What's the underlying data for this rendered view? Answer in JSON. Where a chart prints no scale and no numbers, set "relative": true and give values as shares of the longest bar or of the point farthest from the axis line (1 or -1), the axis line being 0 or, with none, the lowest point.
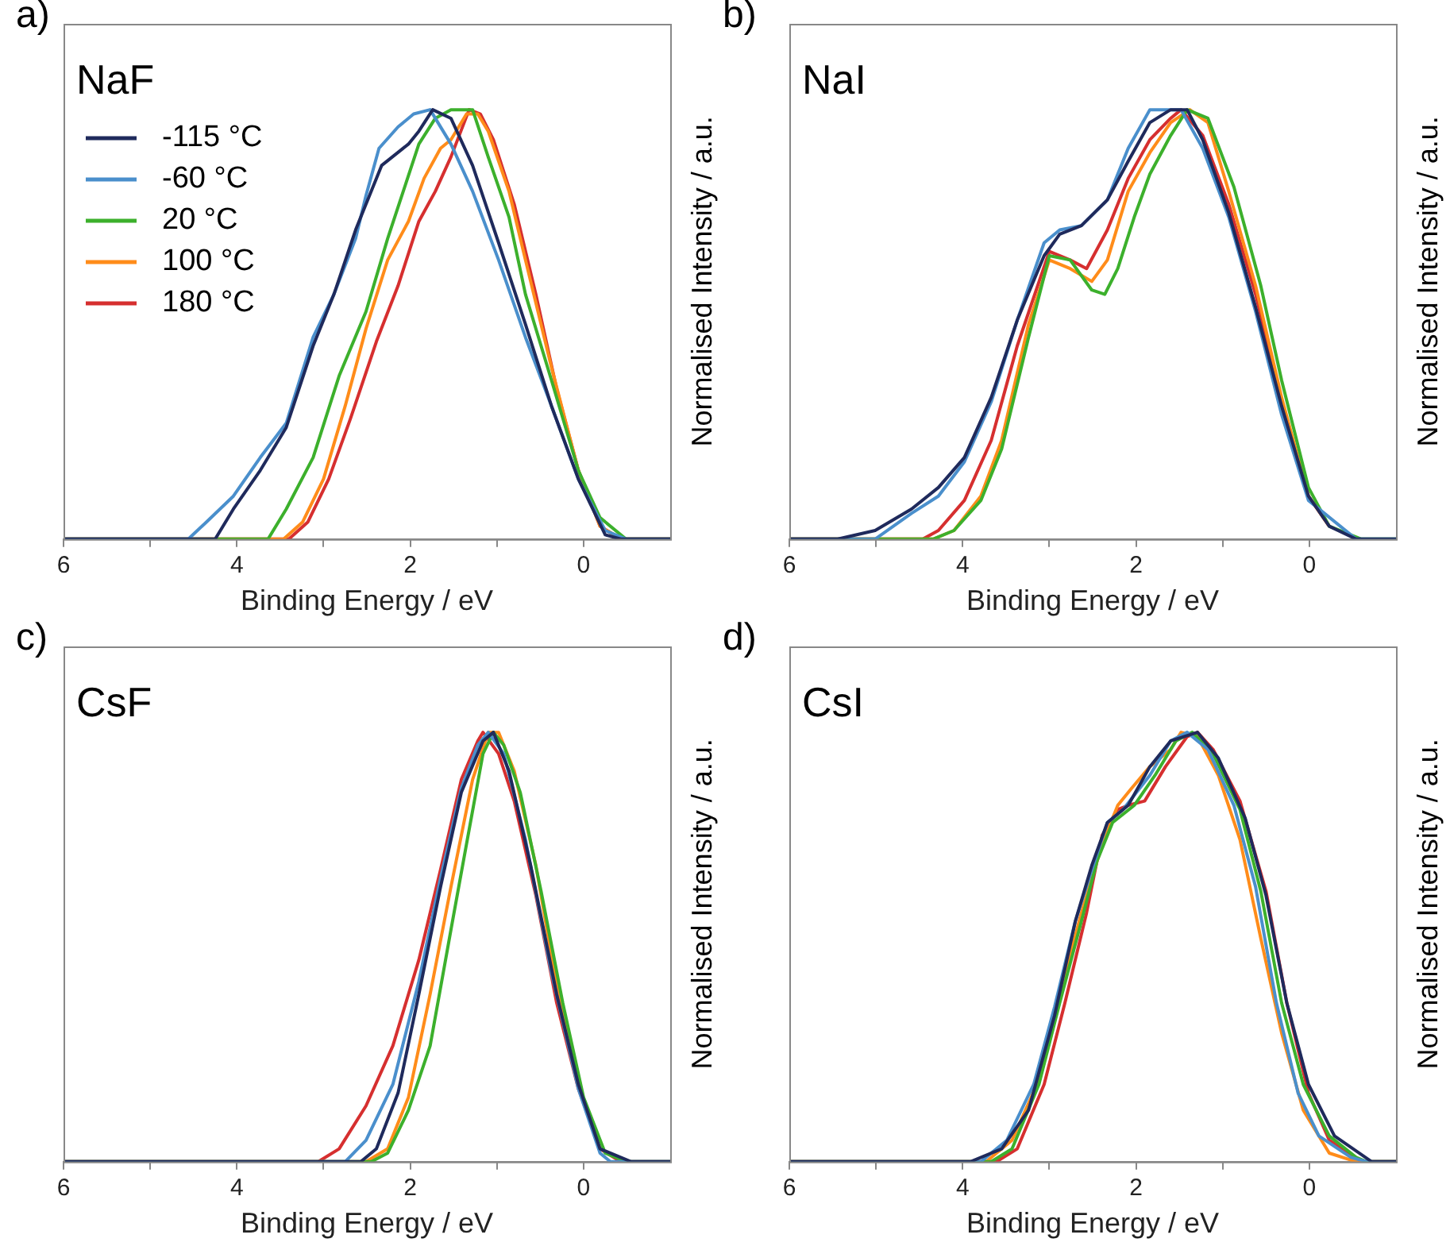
{
  "chart_data": [
    {
      "type": "line",
      "title": "NaF",
      "annotations": [
        "a)"
      ],
      "xlabel": "Binding Energy / eV",
      "ylabel": "Normalised Intensity / a.u.",
      "relative": true,
      "xlim": [
        6,
        -1
      ],
      "xticks": [
        6,
        {
          "value": 5,
          "label": null
        },
        4,
        {
          "value": 3,
          "label": null
        },
        2,
        {
          "value": 1,
          "label": null
        },
        0
      ],
      "legend": "top left",
      "marker": "none",
      "series": [
        {
          "name": "-115 °C",
          "color": "#1f2a5c",
          "x": [
            6,
            4.25,
            4.04,
            3.73,
            3.43,
            3.12,
            2.88,
            2.63,
            2.51,
            2.33,
            2.02,
            1.9,
            1.74,
            1.53,
            1.28,
            0.98,
            0.67,
            0.37,
            0.06,
            -0.25,
            -0.43,
            -1
          ],
          "values": [
            0,
            0,
            0.07,
            0.16,
            0.26,
            0.45,
            0.57,
            0.72,
            0.78,
            0.87,
            0.92,
            0.95,
            1,
            0.98,
            0.87,
            0.69,
            0.5,
            0.31,
            0.14,
            0.01,
            0,
            0
          ]
        },
        {
          "name": "-60 °C",
          "color": "#4a8fcc",
          "x": [
            6,
            4.56,
            4.35,
            4.04,
            3.73,
            3.43,
            3.12,
            2.88,
            2.63,
            2.51,
            2.36,
            2.14,
            1.96,
            1.77,
            1.53,
            1.28,
            0.98,
            0.67,
            0.37,
            0.06,
            -0.25,
            -0.49,
            -1
          ],
          "values": [
            0,
            0,
            0.04,
            0.1,
            0.19,
            0.27,
            0.47,
            0.57,
            0.7,
            0.8,
            0.91,
            0.96,
            0.99,
            1,
            0.92,
            0.81,
            0.65,
            0.47,
            0.31,
            0.14,
            0.02,
            0,
            0
          ]
        },
        {
          "name": "20 °C",
          "color": "#3cb02c",
          "x": [
            6,
            3.64,
            3.43,
            3.12,
            2.82,
            2.51,
            2.26,
            2.08,
            1.9,
            1.71,
            1.53,
            1.28,
            1.1,
            0.86,
            0.67,
            0.37,
            0.06,
            -0.19,
            -0.49,
            -1
          ],
          "values": [
            0,
            0,
            0.07,
            0.19,
            0.38,
            0.53,
            0.7,
            0.81,
            0.92,
            0.98,
            1,
            1,
            0.89,
            0.75,
            0.57,
            0.37,
            0.16,
            0.05,
            0,
            0
          ]
        },
        {
          "name": "100 °C",
          "color": "#ff8c1a",
          "x": [
            6,
            3.46,
            3.24,
            3,
            2.75,
            2.51,
            2.26,
            2.02,
            1.84,
            1.65,
            1.53,
            1.35,
            1.22,
            1.1,
            0.86,
            0.67,
            0.37,
            0.06,
            -0.19,
            -0.43,
            -1
          ],
          "values": [
            0,
            0,
            0.04,
            0.14,
            0.31,
            0.49,
            0.65,
            0.74,
            0.84,
            0.91,
            0.93,
            0.99,
            0.99,
            0.95,
            0.81,
            0.65,
            0.4,
            0.16,
            0.03,
            0,
            0
          ]
        },
        {
          "name": "180 °C",
          "color": "#d62f2f",
          "x": [
            6,
            3.4,
            3.18,
            2.94,
            2.69,
            2.39,
            2.14,
            1.9,
            1.71,
            1.53,
            1.32,
            1.19,
            1.04,
            0.8,
            0.55,
            0.31,
            0.06,
            -0.19,
            -0.43,
            -1
          ],
          "values": [
            0,
            0,
            0.04,
            0.14,
            0.28,
            0.46,
            0.59,
            0.74,
            0.81,
            0.89,
            1,
            0.99,
            0.93,
            0.78,
            0.57,
            0.35,
            0.16,
            0.03,
            0,
            0
          ]
        }
      ]
    },
    {
      "type": "line",
      "title": "NaI",
      "annotations": [
        "b)"
      ],
      "xlabel": "Binding Energy / eV",
      "ylabel": "Normalised Intensity / a.u.",
      "relative": true,
      "xlim": [
        6,
        -1
      ],
      "xticks": [
        6,
        {
          "value": 5,
          "label": null
        },
        4,
        {
          "value": 3,
          "label": null
        },
        2,
        {
          "value": 1,
          "label": null
        },
        0
      ],
      "marker": "none",
      "series": [
        {
          "color": "#1f2a5c",
          "x": [
            6,
            5.44,
            5.01,
            4.59,
            4.28,
            3.98,
            3.67,
            3.37,
            3.06,
            2.88,
            2.63,
            2.33,
            2.09,
            1.84,
            1.6,
            1.41,
            1.23,
            0.93,
            0.62,
            0.32,
            0.01,
            -0.23,
            -0.54,
            -1
          ],
          "values": [
            0,
            0,
            0.02,
            0.07,
            0.12,
            0.19,
            0.33,
            0.51,
            0.66,
            0.71,
            0.73,
            0.79,
            0.88,
            0.97,
            1,
            1,
            0.93,
            0.76,
            0.54,
            0.31,
            0.1,
            0.03,
            0,
            0
          ]
        },
        {
          "color": "#4a8fcc",
          "x": [
            6,
            5.01,
            4.59,
            4.28,
            3.98,
            3.67,
            3.37,
            3.06,
            2.88,
            2.63,
            2.33,
            2.09,
            1.84,
            1.66,
            1.48,
            1.23,
            0.93,
            0.62,
            0.32,
            0.01,
            -0.54,
            -1
          ],
          "values": [
            0,
            0,
            0.06,
            0.1,
            0.18,
            0.32,
            0.51,
            0.69,
            0.72,
            0.73,
            0.79,
            0.91,
            1,
            1,
            1,
            0.91,
            0.75,
            0.53,
            0.29,
            0.09,
            0,
            0
          ]
        },
        {
          "color": "#3cb02c",
          "x": [
            6,
            4.34,
            4.1,
            3.79,
            3.55,
            3.24,
            3,
            2.76,
            2.51,
            2.36,
            2.21,
            2.02,
            1.84,
            1.6,
            1.41,
            1.17,
            0.87,
            0.56,
            0.32,
            0.01,
            -0.23,
            -0.6,
            -1
          ],
          "values": [
            0,
            0,
            0.02,
            0.09,
            0.21,
            0.47,
            0.66,
            0.65,
            0.58,
            0.57,
            0.63,
            0.75,
            0.85,
            0.94,
            1,
            0.98,
            0.82,
            0.59,
            0.37,
            0.12,
            0.03,
            0,
            0
          ]
        },
        {
          "color": "#ff8c1a",
          "x": [
            6,
            4.34,
            4.1,
            3.79,
            3.55,
            3.24,
            3,
            2.76,
            2.51,
            2.33,
            2.09,
            1.84,
            1.6,
            1.38,
            1.17,
            0.93,
            0.62,
            0.32,
            0.01,
            -0.23
          ],
          "values": [
            0,
            0,
            0.02,
            0.1,
            0.23,
            0.5,
            0.65,
            0.63,
            0.6,
            0.65,
            0.81,
            0.9,
            0.97,
            1,
            0.97,
            0.81,
            0.59,
            0.33,
            0.1,
            0.03
          ]
        },
        {
          "color": "#d62f2f",
          "x": [
            6,
            4.46,
            4.28,
            3.98,
            3.67,
            3.37,
            3,
            2.76,
            2.57,
            2.33,
            2.09,
            1.84,
            1.6,
            1.48,
            1.23,
            0.93,
            0.62,
            0.32,
            0.01,
            -0.23
          ],
          "values": [
            0,
            0,
            0.02,
            0.09,
            0.23,
            0.45,
            0.67,
            0.65,
            0.63,
            0.72,
            0.84,
            0.93,
            0.98,
            1,
            0.94,
            0.78,
            0.57,
            0.32,
            0.1,
            0.03
          ]
        }
      ]
    },
    {
      "type": "line",
      "title": "CsF",
      "annotations": [
        "c)"
      ],
      "xlabel": "Binding Energy / eV",
      "ylabel": "Normalised Intensity / a.u.",
      "relative": true,
      "xlim": [
        6,
        -1
      ],
      "xticks": [
        6,
        {
          "value": 5,
          "label": null
        },
        4,
        {
          "value": 3,
          "label": null
        },
        2,
        {
          "value": 1,
          "label": null
        },
        0
      ],
      "marker": "none",
      "series": [
        {
          "color": "#1f2a5c",
          "x": [
            6,
            2.57,
            2.39,
            2.14,
            1.9,
            1.65,
            1.41,
            1.16,
            1.04,
            0.86,
            0.61,
            0.31,
            0.06,
            -0.19,
            -0.55,
            -1
          ],
          "values": [
            0,
            0,
            0.03,
            0.16,
            0.39,
            0.64,
            0.86,
            0.98,
            1,
            0.91,
            0.69,
            0.39,
            0.18,
            0.03,
            0,
            0
          ]
        },
        {
          "color": "#4a8fcc",
          "x": [
            6,
            2.75,
            2.51,
            2.2,
            1.9,
            1.65,
            1.41,
            1.22,
            1.1,
            0.92,
            0.67,
            0.37,
            0.06,
            -0.19,
            -0.31,
            -1
          ],
          "values": [
            0,
            0,
            0.05,
            0.18,
            0.42,
            0.66,
            0.87,
            0.97,
            1,
            0.95,
            0.75,
            0.44,
            0.17,
            0.02,
            0,
            0
          ]
        },
        {
          "color": "#3cb02c",
          "x": [
            6,
            2.45,
            2.26,
            2.02,
            1.77,
            1.53,
            1.35,
            1.16,
            1.04,
            0.92,
            0.73,
            0.49,
            0.24,
            0,
            -0.25,
            -0.49,
            -1
          ],
          "values": [
            0,
            0,
            0.02,
            0.12,
            0.27,
            0.54,
            0.74,
            0.95,
            1,
            0.97,
            0.86,
            0.63,
            0.37,
            0.15,
            0.02,
            0,
            0
          ]
        },
        {
          "color": "#ff8c1a",
          "x": [
            6,
            2.51,
            2.26,
            2.02,
            1.77,
            1.53,
            1.28,
            1.1,
            0.98,
            0.8,
            0.55,
            0.31,
            0.06
          ],
          "values": [
            0,
            0,
            0.03,
            0.15,
            0.39,
            0.64,
            0.89,
            1,
            1,
            0.91,
            0.69,
            0.41,
            0.18
          ]
        },
        {
          "color": "#d62f2f",
          "x": [
            6,
            3.06,
            2.82,
            2.51,
            2.2,
            1.9,
            1.65,
            1.41,
            1.22,
            1.16,
            0.98,
            0.8,
            0.55,
            0.31,
            0.06,
            -0.19,
            -0.43,
            -1
          ],
          "values": [
            0,
            0,
            0.03,
            0.13,
            0.27,
            0.47,
            0.68,
            0.89,
            0.98,
            1,
            0.95,
            0.84,
            0.62,
            0.37,
            0.17,
            0.03,
            0,
            0
          ]
        }
      ]
    },
    {
      "type": "line",
      "title": "CsI",
      "annotations": [
        "d)"
      ],
      "xlabel": "Binding Energy / eV",
      "ylabel": "Normalised Intensity / a.u.",
      "relative": true,
      "xlim": [
        6,
        -1
      ],
      "xticks": [
        6,
        {
          "value": 5,
          "label": null
        },
        4,
        {
          "value": 3,
          "label": null
        },
        2,
        {
          "value": 1,
          "label": null
        },
        0
      ],
      "marker": "none",
      "series": [
        {
          "color": "#1f2a5c",
          "x": [
            6,
            3.91,
            3.55,
            3.24,
            2.94,
            2.7,
            2.51,
            2.33,
            2.09,
            1.84,
            1.6,
            1.29,
            1.05,
            0.74,
            0.5,
            0.26,
            0.01,
            -0.29,
            -0.72,
            -1
          ],
          "values": [
            0,
            0,
            0.03,
            0.12,
            0.34,
            0.56,
            0.69,
            0.79,
            0.83,
            0.92,
            0.98,
            1,
            0.94,
            0.8,
            0.62,
            0.37,
            0.18,
            0.06,
            0,
            0
          ]
        },
        {
          "color": "#4a8fcc",
          "x": [
            6,
            3.79,
            3.49,
            3.18,
            2.94,
            2.7,
            2.51,
            2.33,
            2.15,
            1.84,
            1.6,
            1.41,
            1.17,
            0.87,
            0.62,
            0.38,
            0.13,
            -0.11,
            -0.48,
            -0.66,
            -1
          ],
          "values": [
            0,
            0,
            0.05,
            0.18,
            0.36,
            0.56,
            0.68,
            0.79,
            0.82,
            0.9,
            0.98,
            1,
            0.96,
            0.83,
            0.64,
            0.37,
            0.16,
            0.06,
            0.01,
            0,
            0
          ]
        },
        {
          "color": "#3cb02c",
          "x": [
            6,
            3.67,
            3.43,
            3.12,
            2.88,
            2.63,
            2.45,
            2.27,
            2.02,
            1.78,
            1.54,
            1.35,
            1.11,
            0.8,
            0.56,
            0.32,
            0.07,
            -0.23,
            -0.54,
            -0.66,
            -1
          ],
          "values": [
            0,
            0,
            0.03,
            0.18,
            0.37,
            0.56,
            0.7,
            0.79,
            0.83,
            0.9,
            0.98,
            1,
            0.95,
            0.82,
            0.63,
            0.37,
            0.18,
            0.06,
            0.01,
            0,
            0
          ]
        },
        {
          "color": "#ff8c1a",
          "x": [
            6,
            3.73,
            3.43,
            3.12,
            2.88,
            2.63,
            2.45,
            2.33,
            2.21,
            2.05,
            1.84,
            1.6,
            1.48,
            1.29,
            1.05,
            0.8,
            0.56,
            0.32,
            0.07,
            -0.23,
            -0.54,
            -1
          ],
          "values": [
            0,
            0,
            0.05,
            0.19,
            0.39,
            0.58,
            0.7,
            0.77,
            0.83,
            0.87,
            0.92,
            0.96,
            1,
            0.99,
            0.9,
            0.75,
            0.52,
            0.3,
            0.12,
            0.02,
            0,
            0
          ]
        },
        {
          "color": "#d62f2f",
          "x": [
            6,
            3.61,
            3.37,
            3.06,
            2.82,
            2.57,
            2.39,
            2.21,
            2.09,
            1.9,
            1.66,
            1.41,
            1.29,
            1.11,
            0.8,
            0.5,
            0.26,
            0.01,
            -0.23,
            -0.6,
            -1
          ],
          "values": [
            0,
            0,
            0.03,
            0.18,
            0.37,
            0.58,
            0.76,
            0.82,
            0.83,
            0.84,
            0.92,
            0.99,
            1,
            0.96,
            0.84,
            0.63,
            0.37,
            0.16,
            0.05,
            0,
            0
          ]
        }
      ]
    }
  ]
}
